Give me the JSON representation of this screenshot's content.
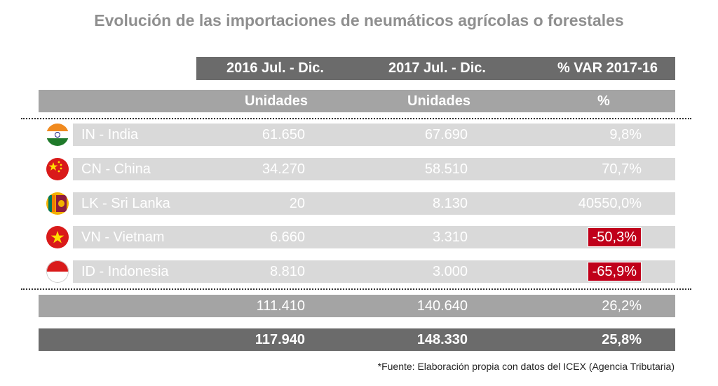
{
  "title": "Evolución de las importaciones de neumáticos agrícolas o forestales",
  "colors": {
    "header_dark": "#6b6b6b",
    "header_light": "#a4a4a4",
    "row_bg": "#d9d9d9",
    "negative": "#c0001a"
  },
  "chart_data": {
    "type": "table",
    "title": "Evolución de las importaciones de neumáticos agrícolas o forestales",
    "column_headers": [
      "2016 Jul. - Dic.",
      "2017 Jul. - Dic.",
      "% VAR 2017-16"
    ],
    "unit_headers": [
      "Unidades",
      "Unidades",
      "%"
    ],
    "rows": [
      {
        "country": "IN - India",
        "v2016": "61.650",
        "v2017": "67.690",
        "var": "9,8%",
        "negative": false,
        "flag": "india-flag-icon"
      },
      {
        "country": "CN - China",
        "v2016": "34.270",
        "v2017": "58.510",
        "var": "70,7%",
        "negative": false,
        "flag": "china-flag-icon"
      },
      {
        "country": "LK - Sri Lanka",
        "v2016": "20",
        "v2017": "8.130",
        "var": "40550,0%",
        "negative": false,
        "flag": "sri-lanka-flag-icon"
      },
      {
        "country": "VN - Vietnam",
        "v2016": "6.660",
        "v2017": "3.310",
        "var": "-50,3%",
        "negative": true,
        "flag": "vietnam-flag-icon"
      },
      {
        "country": "ID - Indonesia",
        "v2016": "8.810",
        "v2017": "3.000",
        "var": "-65,9%",
        "negative": true,
        "flag": "indonesia-flag-icon"
      }
    ],
    "subtotal": {
      "v2016": "111.410",
      "v2017": "140.640",
      "var": "26,2%"
    },
    "total": {
      "v2016": "117.940",
      "v2017": "148.330",
      "var": "25,8%"
    }
  },
  "source": "*Fuente: Elaboración propia con datos del ICEX (Agencia Tributaria)"
}
